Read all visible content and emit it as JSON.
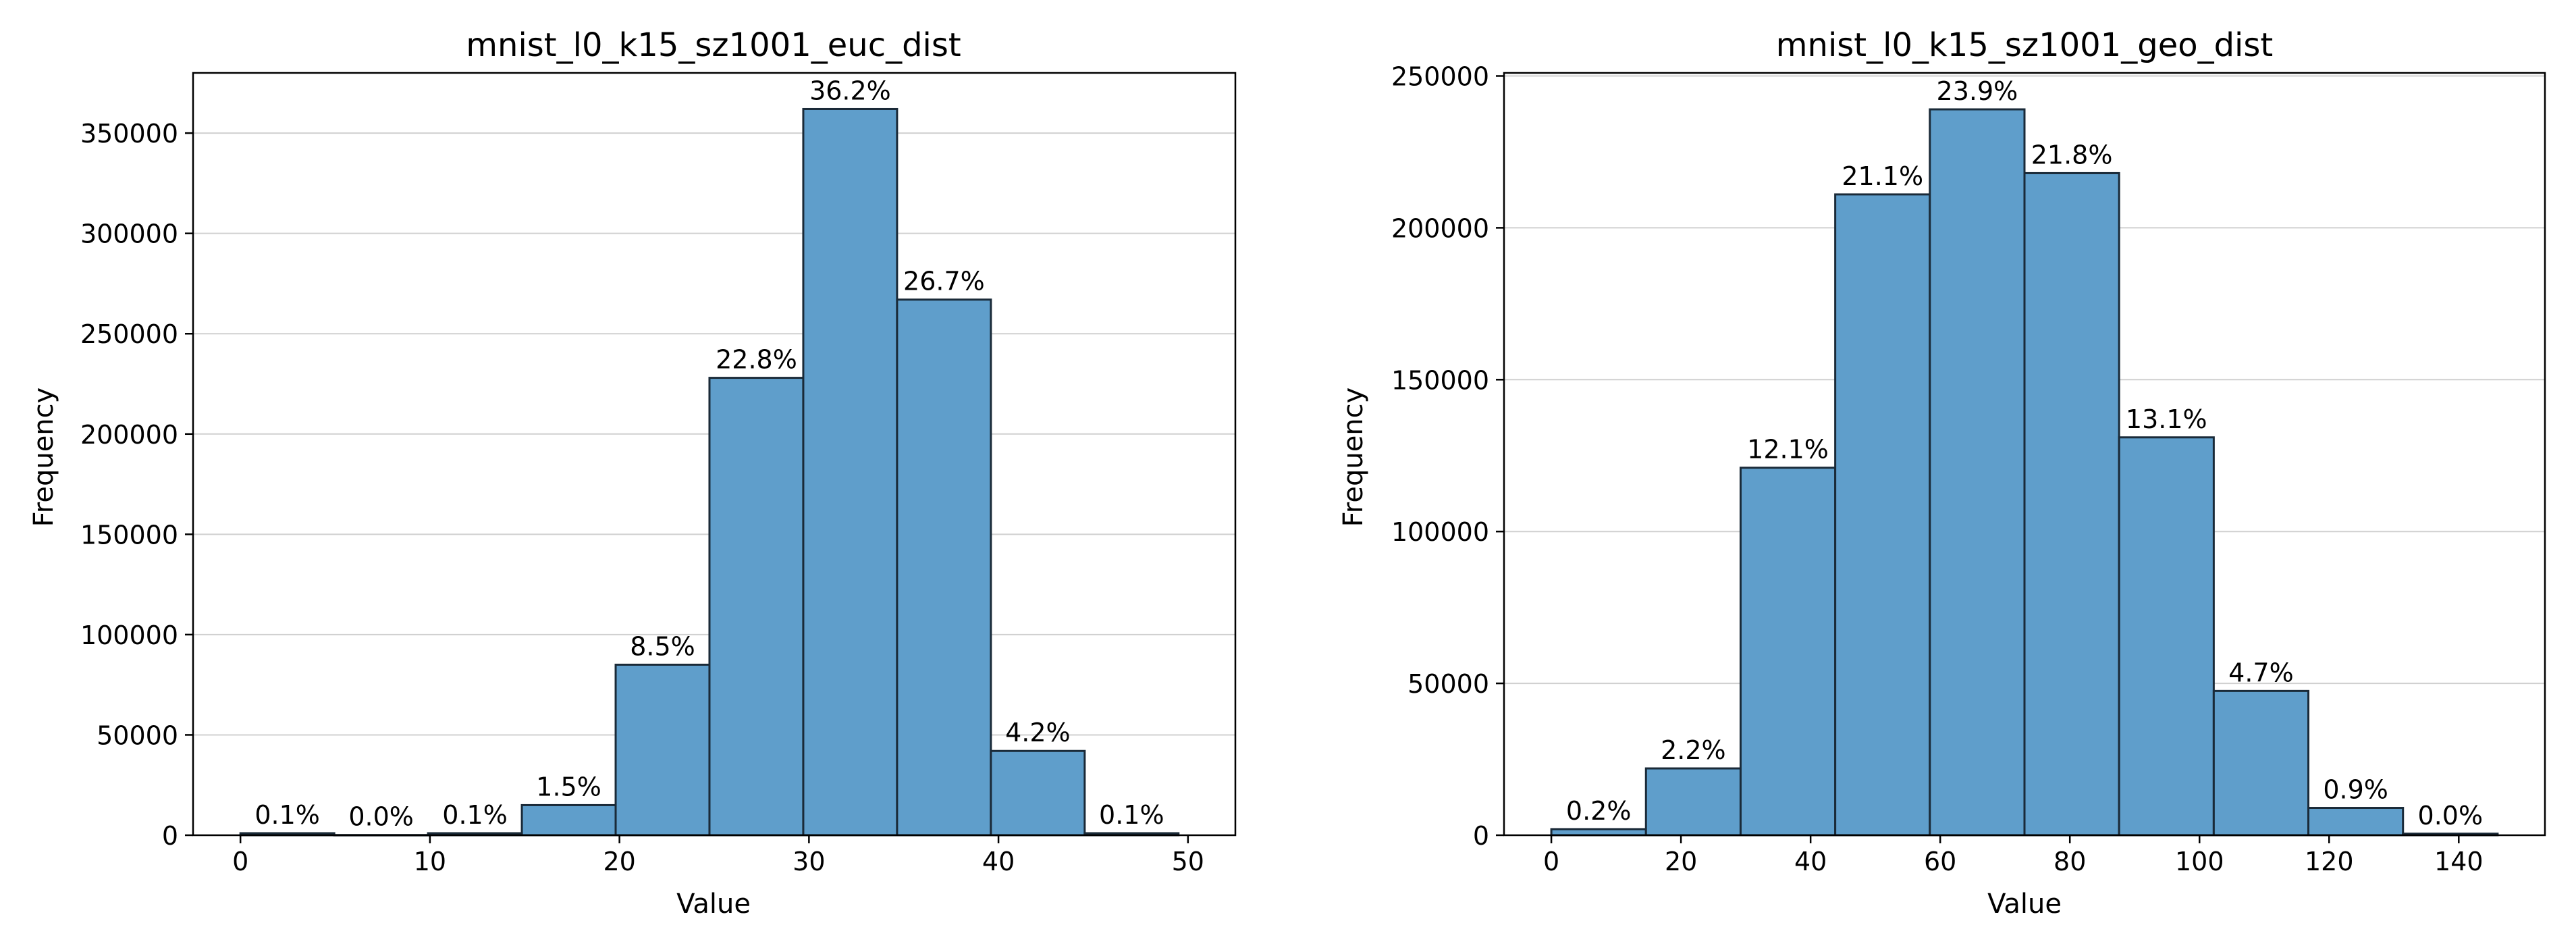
{
  "chart_data": [
    {
      "type": "bar",
      "title": "mnist_l0_k15_sz1001_euc_dist",
      "xlabel": "Value",
      "ylabel": "Frequency",
      "bin_edges": [
        0,
        4.95,
        9.9,
        14.85,
        19.8,
        24.75,
        29.7,
        34.65,
        39.6,
        44.55,
        49.5
      ],
      "values": [
        1000,
        100,
        1000,
        15000,
        85000,
        228000,
        362000,
        267000,
        42000,
        1000
      ],
      "labels": [
        "0.1%",
        "0.0%",
        "0.1%",
        "1.5%",
        "8.5%",
        "22.8%",
        "36.2%",
        "26.7%",
        "4.2%",
        "0.1%"
      ],
      "xticks": [
        0,
        10,
        20,
        30,
        40,
        50
      ],
      "yticks": [
        0,
        50000,
        100000,
        150000,
        200000,
        250000,
        300000,
        350000
      ],
      "xlim": [
        -2.5,
        52.5
      ],
      "ylim": [
        0,
        380000
      ],
      "grid": "y",
      "bar_color": "#5f9ecb",
      "edge_color": "#1a2a38"
    },
    {
      "type": "bar",
      "title": "mnist_l0_k15_sz1001_geo_dist",
      "xlabel": "Value",
      "ylabel": "Frequency",
      "bin_edges": [
        0,
        14.6,
        29.2,
        43.8,
        58.4,
        73,
        87.6,
        102.2,
        116.8,
        131.4,
        146
      ],
      "values": [
        2000,
        22000,
        121000,
        211000,
        239000,
        218000,
        131000,
        47500,
        9000,
        500
      ],
      "labels": [
        "0.2%",
        "2.2%",
        "12.1%",
        "21.1%",
        "23.9%",
        "21.8%",
        "13.1%",
        "4.7%",
        "0.9%",
        "0.0%"
      ],
      "xticks": [
        0,
        20,
        40,
        60,
        80,
        100,
        120,
        140
      ],
      "yticks": [
        0,
        50000,
        100000,
        150000,
        200000,
        250000
      ],
      "xlim": [
        -7.3,
        153.3
      ],
      "ylim": [
        0,
        251000
      ],
      "grid": "y",
      "bar_color": "#5f9ecb",
      "edge_color": "#1a2a38"
    }
  ]
}
